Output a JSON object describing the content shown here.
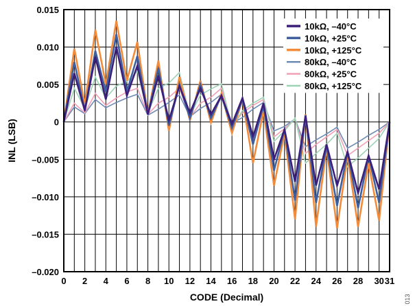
{
  "figure_number": "013",
  "chart_data": {
    "type": "line",
    "xlabel": "CODE (Decimal)",
    "ylabel": "INL (LSB)",
    "xlim": [
      0,
      31
    ],
    "ylim": [
      -0.02,
      0.015
    ],
    "grid": true,
    "legend_position": "top-right",
    "x_ticks": [
      0,
      2,
      4,
      6,
      8,
      10,
      12,
      14,
      16,
      18,
      20,
      22,
      24,
      26,
      28,
      30
    ],
    "x_tick_labels": [
      "0",
      "2",
      "4",
      "6",
      "8",
      "10",
      "12",
      "14",
      "16",
      "18",
      "20",
      "22",
      "24",
      "26",
      "28",
      "30"
    ],
    "x_extra_tick_label": {
      "value": 31,
      "label": "31"
    },
    "y_ticks": [
      0.015,
      0.01,
      0.005,
      0,
      -0.005,
      -0.01,
      -0.015,
      -0.02
    ],
    "y_tick_labels": [
      "0.015",
      "0.010",
      "0.005",
      "0",
      "–0.005",
      "–0.010",
      "–0.015",
      "–0.020"
    ],
    "x": [
      0,
      1,
      2,
      3,
      4,
      5,
      6,
      7,
      8,
      9,
      10,
      11,
      12,
      13,
      14,
      15,
      16,
      17,
      18,
      19,
      20,
      21,
      22,
      23,
      24,
      25,
      26,
      27,
      28,
      29,
      30,
      31
    ],
    "series": [
      {
        "name": "10kΩ, –40°C",
        "color": "#3b1f7a",
        "width": 2.6,
        "values": [
          0,
          0.0065,
          0.0015,
          0.0087,
          0.003,
          0.01,
          0.0035,
          0.0075,
          0.001,
          0.0062,
          0.0002,
          0.0048,
          0.0012,
          0.0045,
          0.001,
          0.0035,
          -0.0003,
          0.0032,
          -0.002,
          0.0025,
          -0.005,
          -0.001,
          -0.008,
          0.0008,
          -0.0085,
          -0.003,
          -0.0085,
          -0.004,
          -0.0095,
          -0.0045,
          -0.009,
          0
        ]
      },
      {
        "name": "10kΩ, +25°C",
        "color": "#3f5f9e",
        "width": 2.6,
        "values": [
          0,
          0.008,
          0.0015,
          0.0095,
          0.004,
          0.0117,
          0.004,
          0.0088,
          0.001,
          0.0072,
          -0.0005,
          0.005,
          0.0005,
          0.005,
          0.0005,
          0.0035,
          -0.0008,
          0.003,
          -0.003,
          0.0022,
          -0.0065,
          -0.001,
          -0.0105,
          0.0009,
          -0.0108,
          -0.0032,
          -0.0112,
          -0.004,
          -0.0115,
          -0.0045,
          -0.0108,
          0
        ]
      },
      {
        "name": "10kΩ, +125°C",
        "color": "#f28b3a",
        "width": 2.6,
        "values": [
          0,
          0.0098,
          0.0023,
          0.0123,
          0.005,
          0.0135,
          0.0055,
          0.0107,
          0.001,
          0.0082,
          -0.0012,
          0.006,
          0.0002,
          0.0055,
          -0.0001,
          0.0038,
          -0.0015,
          0.003,
          -0.0055,
          0.0015,
          -0.0085,
          -0.0015,
          -0.013,
          0.001,
          -0.014,
          -0.0035,
          -0.0142,
          -0.0045,
          -0.014,
          -0.0055,
          -0.0132,
          0
        ]
      },
      {
        "name": "80kΩ, –40°C",
        "color": "#6d8ab5",
        "width": 1.6,
        "values": [
          0,
          0.002,
          0.0011,
          0.003,
          0.0019,
          0.0026,
          0.0032,
          0.0037,
          0.0009,
          0.0017,
          0.0026,
          0.0036,
          0.0007,
          0.0018,
          0.0026,
          0.0037,
          -0.0002,
          0.0006,
          0.0017,
          0.0026,
          -0.0012,
          -0.0006,
          0.0004,
          -0.0033,
          -0.0024,
          -0.0016,
          -0.0007,
          -0.0035,
          -0.0027,
          -0.0018,
          -0.001,
          0
        ]
      },
      {
        "name": "80kΩ, +25°C",
        "color": "#f0a0b4",
        "width": 1.6,
        "values": [
          0,
          0.0025,
          0.0012,
          0.0038,
          0.0022,
          0.0032,
          0.004,
          0.0045,
          0.001,
          0.0025,
          0.0033,
          0.0045,
          0.0006,
          0.0025,
          0.0033,
          0.0045,
          -0.0005,
          0.0012,
          0.0022,
          0.003,
          -0.002,
          -0.0009,
          0.0004,
          -0.0042,
          -0.003,
          -0.002,
          -0.001,
          -0.0045,
          -0.0035,
          -0.0025,
          -0.0015,
          0
        ]
      },
      {
        "name": "80kΩ, +125°C",
        "color": "#9ed2b4",
        "width": 1.6,
        "values": [
          0,
          0.0045,
          0.0018,
          0.006,
          0.0032,
          0.0048,
          0.0054,
          0.0068,
          0.0012,
          0.0045,
          0.0052,
          0.0066,
          0.0008,
          0.0036,
          0.0044,
          0.0051,
          -0.0007,
          0.0015,
          0.0025,
          0.0033,
          -0.0026,
          -0.0012,
          0.0005,
          -0.0055,
          -0.0042,
          -0.003,
          -0.0015,
          -0.006,
          -0.0048,
          -0.0035,
          -0.0022,
          0
        ]
      }
    ]
  }
}
